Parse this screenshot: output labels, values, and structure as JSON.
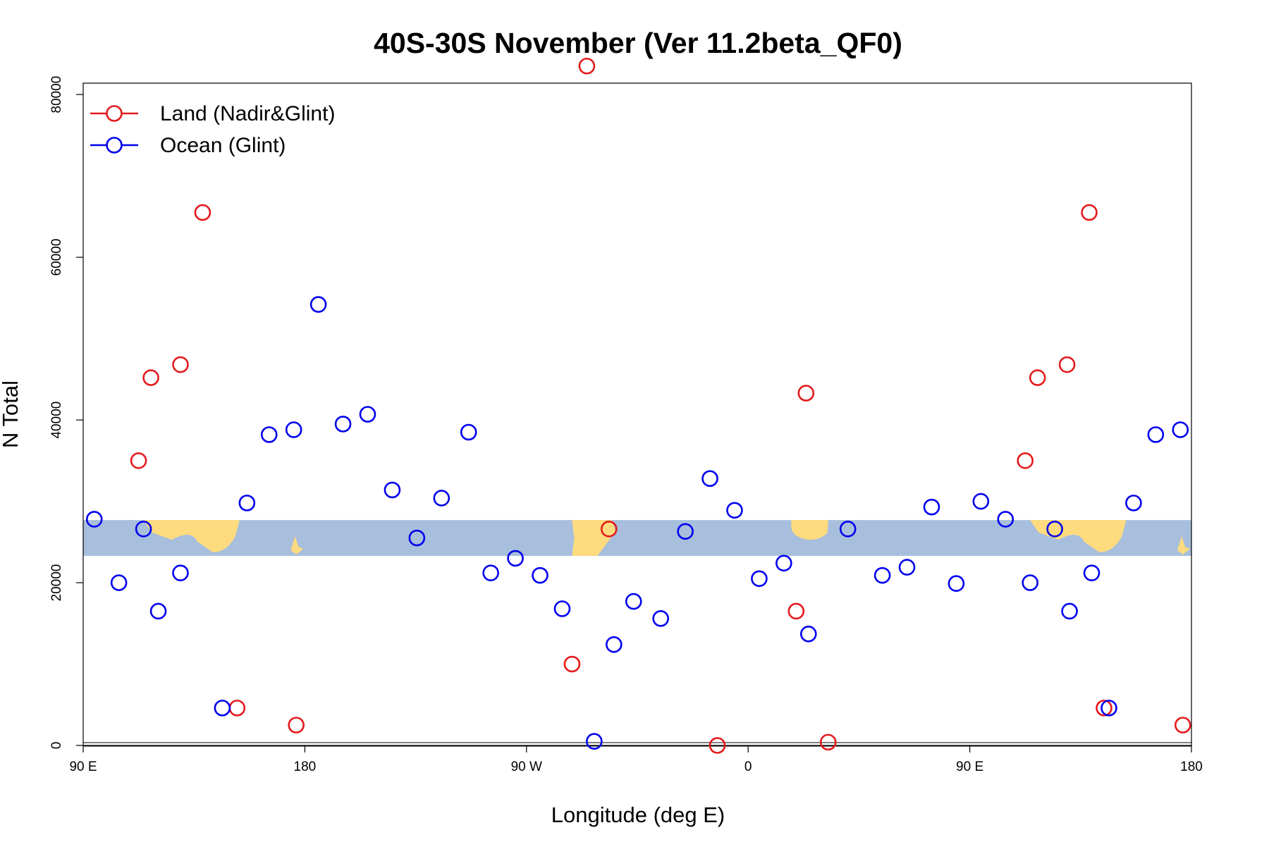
{
  "chart_data": {
    "type": "scatter",
    "title": "40S-30S November (Ver 11.2beta_QF0)",
    "xlabel": "Longitude (deg E)",
    "ylabel": "N Total",
    "xlim": [
      90,
      540
    ],
    "ylim": [
      0,
      80000
    ],
    "x_ticks": [
      {
        "value": 90,
        "label": "90 E"
      },
      {
        "value": 180,
        "label": "180"
      },
      {
        "value": 270,
        "label": "90 W"
      },
      {
        "value": 360,
        "label": "0"
      },
      {
        "value": 450,
        "label": "90 E"
      },
      {
        "value": 540,
        "label": "180"
      }
    ],
    "y_ticks": [
      {
        "value": 0,
        "label": "0"
      },
      {
        "value": 20000,
        "label": "20000"
      },
      {
        "value": 40000,
        "label": "40000"
      },
      {
        "value": 60000,
        "label": "60000"
      },
      {
        "value": 80000,
        "label": "80000"
      }
    ],
    "grid": false,
    "legend_position": "top-left",
    "map_band": {
      "y_range": [
        23300,
        27700
      ],
      "ocean_color": "#a7bedc",
      "land_color": "#fedb7e"
    },
    "colors": {
      "land": "#e41a1c",
      "ocean": "#0000ee",
      "axis": "#000000"
    },
    "series": [
      {
        "name": "Land (Nadir&Glint)",
        "color": "#e41a1c",
        "points": [
          [
            112.5,
            35000
          ],
          [
            117.5,
            45200
          ],
          [
            129.5,
            46800
          ],
          [
            138.5,
            65500
          ],
          [
            152.5,
            4600
          ],
          [
            176.5,
            2500
          ],
          [
            294.5,
            83500
          ],
          [
            288.5,
            10000
          ],
          [
            303.5,
            26600
          ],
          [
            347.5,
            0
          ],
          [
            379.5,
            16500
          ],
          [
            383.5,
            43300
          ],
          [
            392.5,
            400
          ],
          [
            472.5,
            35000
          ],
          [
            477.5,
            45200
          ],
          [
            489.5,
            46800
          ],
          [
            498.5,
            65500
          ],
          [
            504.5,
            4600
          ],
          [
            536.5,
            2500
          ]
        ]
      },
      {
        "name": "Ocean (Glint)",
        "color": "#0000ee",
        "points": [
          [
            94.5,
            27800
          ],
          [
            104.5,
            20000
          ],
          [
            114.5,
            26600
          ],
          [
            120.5,
            16500
          ],
          [
            129.5,
            21200
          ],
          [
            146.5,
            4600
          ],
          [
            156.5,
            29800
          ],
          [
            165.5,
            38200
          ],
          [
            175.5,
            38800
          ],
          [
            185.5,
            54200
          ],
          [
            195.5,
            39500
          ],
          [
            205.5,
            40700
          ],
          [
            215.5,
            31400
          ],
          [
            225.5,
            25500
          ],
          [
            235.5,
            30400
          ],
          [
            246.5,
            38500
          ],
          [
            255.5,
            21200
          ],
          [
            265.5,
            23000
          ],
          [
            275.5,
            20900
          ],
          [
            284.5,
            16800
          ],
          [
            297.5,
            500
          ],
          [
            305.5,
            12400
          ],
          [
            313.5,
            17700
          ],
          [
            324.5,
            15600
          ],
          [
            334.5,
            26300
          ],
          [
            344.5,
            32800
          ],
          [
            354.5,
            28900
          ],
          [
            364.5,
            20500
          ],
          [
            374.5,
            22400
          ],
          [
            384.5,
            13700
          ],
          [
            400.5,
            26600
          ],
          [
            414.5,
            20900
          ],
          [
            424.5,
            21900
          ],
          [
            434.5,
            29300
          ],
          [
            444.5,
            19900
          ],
          [
            454.5,
            30000
          ],
          [
            464.5,
            27800
          ],
          [
            474.5,
            20000
          ],
          [
            484.5,
            26600
          ],
          [
            490.5,
            16500
          ],
          [
            499.5,
            21200
          ],
          [
            506.5,
            4600
          ],
          [
            516.5,
            29800
          ],
          [
            525.5,
            38200
          ],
          [
            535.5,
            38800
          ]
        ]
      }
    ]
  }
}
